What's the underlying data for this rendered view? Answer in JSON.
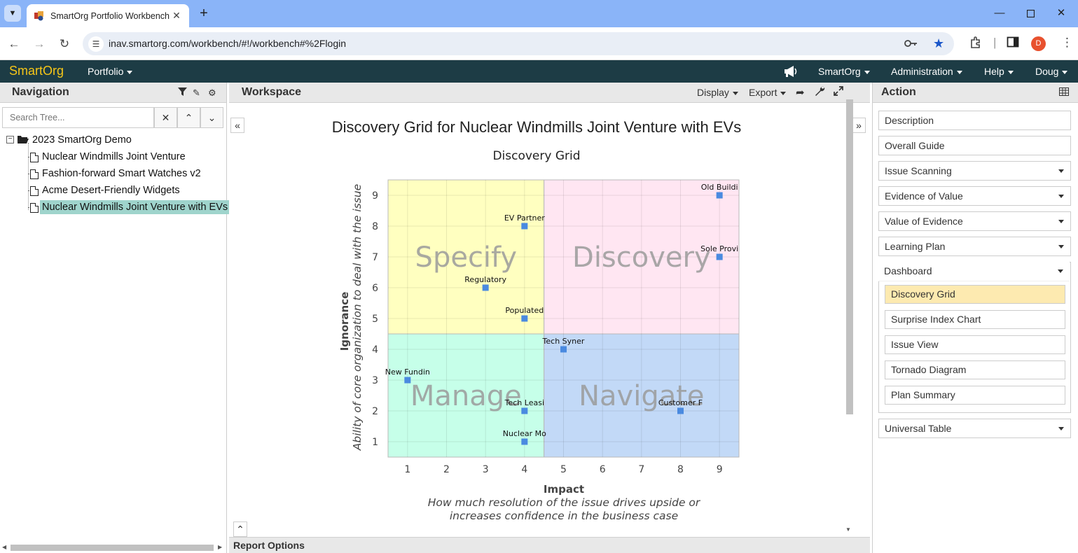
{
  "browser": {
    "tab_title": "SmartOrg Portfolio Workbench",
    "url": "inav.smartorg.com/workbench/#!/workbench#%2Flogin",
    "profile_initial": "D"
  },
  "app_nav": {
    "brand": "SmartOrg",
    "portfolio": "Portfolio",
    "smartorg_menu": "SmartOrg",
    "administration": "Administration",
    "help": "Help",
    "user": "Doug"
  },
  "navigation": {
    "title": "Navigation",
    "search_placeholder": "Search Tree...",
    "root": "2023 SmartOrg Demo",
    "items": [
      "Nuclear Windmills Joint Venture",
      "Fashion-forward Smart Watches v2",
      "Acme Desert-Friendly Widgets",
      "Nuclear Windmills Joint Venture with EVs"
    ]
  },
  "workspace": {
    "title": "Workspace",
    "display": "Display",
    "export": "Export",
    "report_options": "Report Options"
  },
  "chart_data": {
    "type": "scatter",
    "title": "Discovery Grid for Nuclear Windmills Joint Venture with EVs",
    "subtitle": "Discovery Grid",
    "xlabel": "Impact",
    "xlabel_sub": "How much resolution of the issue drives upside or increases confidence in the business case",
    "ylabel": "Ignorance",
    "ylabel_sub": "Ability of core organization to deal with the issue",
    "xlim": [
      0.5,
      9.5
    ],
    "ylim": [
      0.5,
      9.5
    ],
    "xticks": [
      1,
      2,
      3,
      4,
      5,
      6,
      7,
      8,
      9
    ],
    "yticks": [
      1,
      2,
      3,
      4,
      5,
      6,
      7,
      8,
      9
    ],
    "grid": true,
    "quadrants": [
      {
        "name": "Specify",
        "x": [
          0.5,
          4.5
        ],
        "y": [
          4.5,
          9.5
        ],
        "color": "#ffffc0"
      },
      {
        "name": "Discovery",
        "x": [
          4.5,
          9.5
        ],
        "y": [
          4.5,
          9.5
        ],
        "color": "#ffe6f2"
      },
      {
        "name": "Manage",
        "x": [
          0.5,
          4.5
        ],
        "y": [
          0.5,
          4.5
        ],
        "color": "#c6ffe9"
      },
      {
        "name": "Navigate",
        "x": [
          4.5,
          9.5
        ],
        "y": [
          0.5,
          4.5
        ],
        "color": "#c2d9f7"
      }
    ],
    "point_color": "#4a8ae0",
    "points": [
      {
        "label": "Old Buildi",
        "x": 9,
        "y": 9
      },
      {
        "label": "EV Partner",
        "x": 4,
        "y": 8
      },
      {
        "label": "Sole Provi",
        "x": 9,
        "y": 7
      },
      {
        "label": "Regulatory",
        "x": 3,
        "y": 6
      },
      {
        "label": "Populated",
        "x": 4,
        "y": 5
      },
      {
        "label": "Tech Syner",
        "x": 5,
        "y": 4
      },
      {
        "label": "New Fundin",
        "x": 1,
        "y": 3
      },
      {
        "label": "Tech Leasi",
        "x": 4,
        "y": 2
      },
      {
        "label": "Customer F",
        "x": 8,
        "y": 2
      },
      {
        "label": "Nuclear Mo",
        "x": 4,
        "y": 1
      }
    ]
  },
  "action": {
    "title": "Action",
    "buttons": {
      "description": "Description",
      "overall_guide": "Overall Guide",
      "issue_scanning": "Issue Scanning",
      "evidence_of_value": "Evidence of Value",
      "value_of_evidence": "Value of Evidence",
      "learning_plan": "Learning Plan",
      "dashboard": "Dashboard",
      "universal_table": "Universal Table"
    },
    "dashboard_items": [
      "Discovery Grid",
      "Surprise Index Chart",
      "Issue View",
      "Tornado Diagram",
      "Plan Summary"
    ]
  }
}
